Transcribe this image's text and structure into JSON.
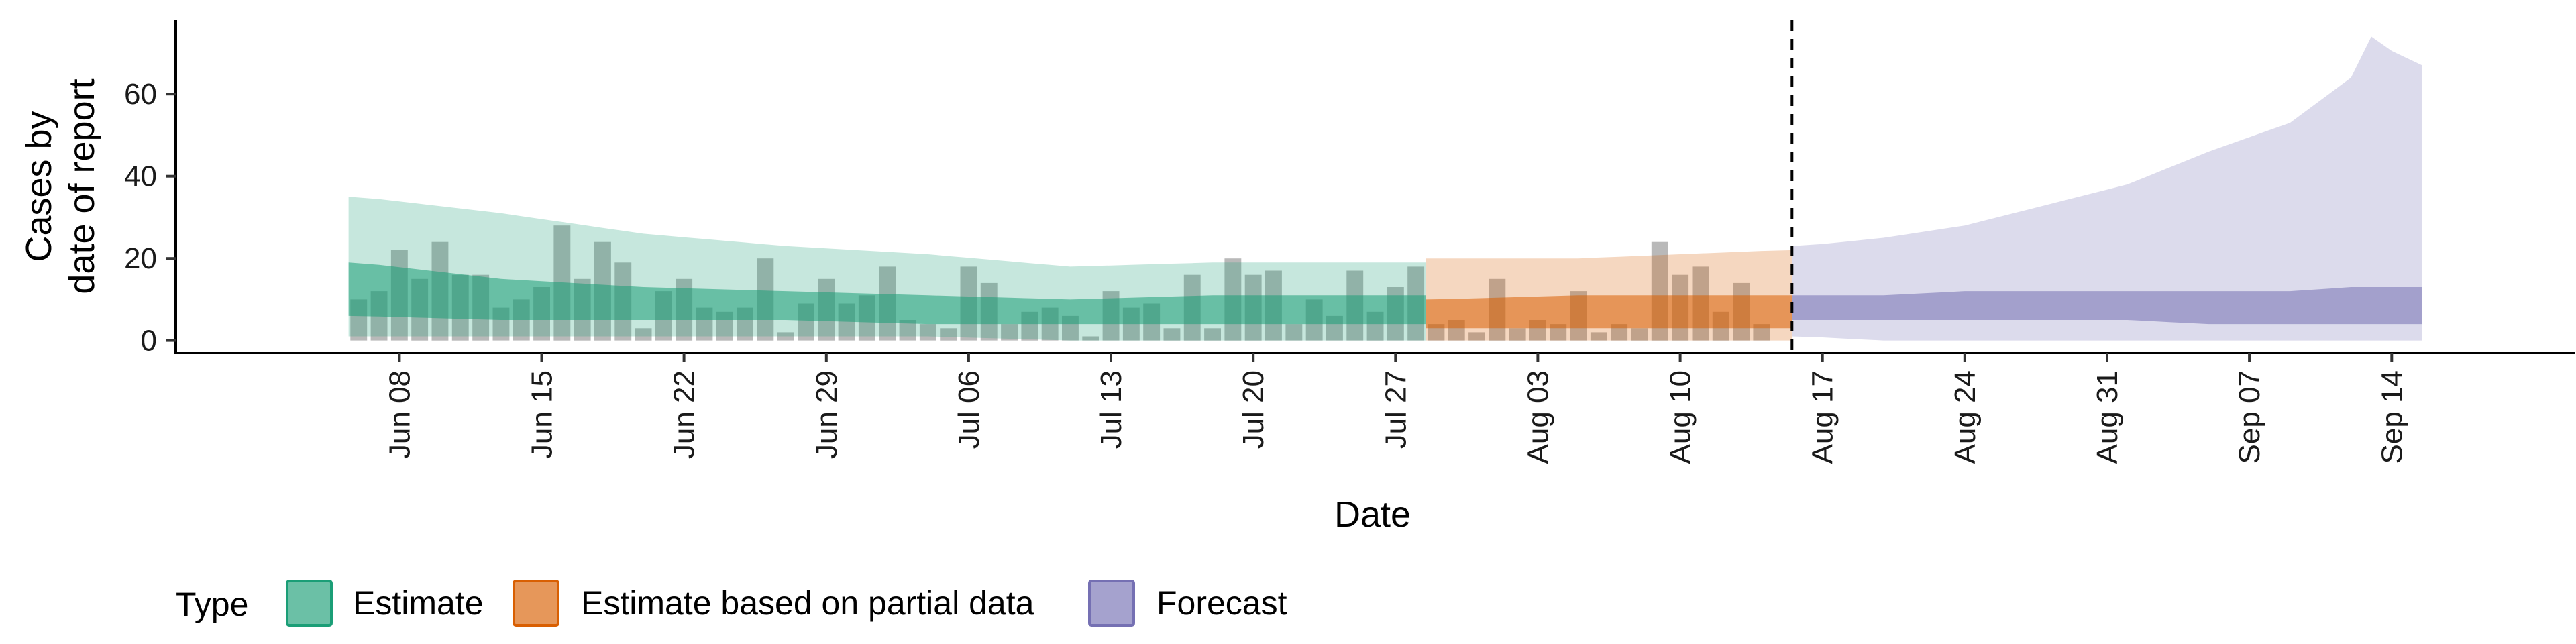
{
  "chart_data": {
    "type": "area",
    "xlabel": "Date",
    "ylabel_lines": [
      "Cases by",
      "date of report"
    ],
    "x_ticks": [
      "Jun 08",
      "Jun 15",
      "Jun 22",
      "Jun 29",
      "Jul 06",
      "Jul 13",
      "Jul 20",
      "Jul 27",
      "Aug 03",
      "Aug 10",
      "Aug 17",
      "Aug 24",
      "Aug 31",
      "Sep 07",
      "Sep 14"
    ],
    "y_ticks": [
      0,
      20,
      40,
      60
    ],
    "xlim": [
      "2020-05-28",
      "2020-09-23"
    ],
    "ylim": [
      -3,
      78
    ],
    "grid": false,
    "forecast_date_line": "2020-08-15",
    "legend": {
      "title": "Type",
      "position": "bottom",
      "entries": [
        {
          "label": "Estimate",
          "fill": "#1b9e77"
        },
        {
          "label": "Estimate based on partial data",
          "fill": "#d95f02"
        },
        {
          "label": "Forecast",
          "fill": "#7570b3"
        }
      ]
    },
    "observed_cases": {
      "start_date": "2020-06-06",
      "values": [
        10,
        12,
        22,
        15,
        24,
        16,
        16,
        8,
        10,
        13,
        28,
        15,
        24,
        19,
        3,
        12,
        15,
        8,
        7,
        8,
        20,
        2,
        9,
        15,
        9,
        11,
        18,
        5,
        4,
        3,
        18,
        14,
        4,
        7,
        8,
        6,
        1,
        12,
        8,
        9,
        3,
        16,
        3,
        20,
        16,
        17,
        4,
        10,
        6,
        17,
        7,
        13,
        18,
        4,
        5,
        2,
        15,
        3,
        5,
        4,
        12,
        2,
        4,
        3,
        24,
        16,
        18,
        7,
        14,
        4
      ],
      "color": "#7f7f7f"
    },
    "bands": [
      {
        "name": "Estimate",
        "start_date": "2020-06-06",
        "end_date": "2020-07-28",
        "knots": [
          {
            "date": "2020-06-06",
            "lo90": 1,
            "hi90": 35,
            "lo50": 6,
            "hi50": 19
          },
          {
            "date": "2020-06-13",
            "lo90": 1,
            "hi90": 31,
            "lo50": 5,
            "hi50": 15
          },
          {
            "date": "2020-06-20",
            "lo90": 1,
            "hi90": 26,
            "lo50": 5,
            "hi50": 13
          },
          {
            "date": "2020-06-27",
            "lo90": 1,
            "hi90": 23,
            "lo50": 5,
            "hi50": 12
          },
          {
            "date": "2020-07-04",
            "lo90": 1,
            "hi90": 21,
            "lo50": 4,
            "hi50": 11
          },
          {
            "date": "2020-07-11",
            "lo90": 0,
            "hi90": 18,
            "lo50": 4,
            "hi50": 10
          },
          {
            "date": "2020-07-18",
            "lo90": 0,
            "hi90": 19,
            "lo50": 4,
            "hi50": 11
          },
          {
            "date": "2020-07-28",
            "lo90": 0,
            "hi90": 19,
            "lo50": 4,
            "hi50": 11
          }
        ],
        "color": "#1b9e77"
      },
      {
        "name": "Estimate based on partial data",
        "start_date": "2020-07-29",
        "end_date": "2020-08-15",
        "knots": [
          {
            "date": "2020-07-29",
            "lo90": 0,
            "hi90": 20,
            "lo50": 3,
            "hi50": 10
          },
          {
            "date": "2020-08-05",
            "lo90": 0,
            "hi90": 20,
            "lo50": 3,
            "hi50": 11
          },
          {
            "date": "2020-08-10",
            "lo90": 0,
            "hi90": 21,
            "lo50": 3,
            "hi50": 11
          },
          {
            "date": "2020-08-15",
            "lo90": 0,
            "hi90": 22,
            "lo50": 3,
            "hi50": 11
          }
        ],
        "color": "#d95f02"
      },
      {
        "name": "Forecast",
        "start_date": "2020-08-16",
        "end_date": "2020-09-15",
        "knots": [
          {
            "date": "2020-08-16",
            "lo90": 1,
            "hi90": 23,
            "lo50": 5,
            "hi50": 11
          },
          {
            "date": "2020-08-20",
            "lo90": 0,
            "hi90": 25,
            "lo50": 5,
            "hi50": 11
          },
          {
            "date": "2020-08-24",
            "lo90": 0,
            "hi90": 28,
            "lo50": 5,
            "hi50": 12
          },
          {
            "date": "2020-08-28",
            "lo90": 0,
            "hi90": 33,
            "lo50": 5,
            "hi50": 12
          },
          {
            "date": "2020-09-01",
            "lo90": 0,
            "hi90": 38,
            "lo50": 5,
            "hi50": 12
          },
          {
            "date": "2020-09-05",
            "lo90": 0,
            "hi90": 46,
            "lo50": 4,
            "hi50": 12
          },
          {
            "date": "2020-09-09",
            "lo90": 0,
            "hi90": 53,
            "lo50": 4,
            "hi50": 12
          },
          {
            "date": "2020-09-12",
            "lo90": 0,
            "hi90": 64,
            "lo50": 4,
            "hi50": 13
          },
          {
            "date": "2020-09-13",
            "lo90": 0,
            "hi90": 74,
            "lo50": 4,
            "hi50": 13
          },
          {
            "date": "2020-09-15",
            "lo90": 0,
            "hi90": 67,
            "lo50": 4,
            "hi50": 13
          }
        ],
        "color": "#7570b3"
      }
    ]
  }
}
